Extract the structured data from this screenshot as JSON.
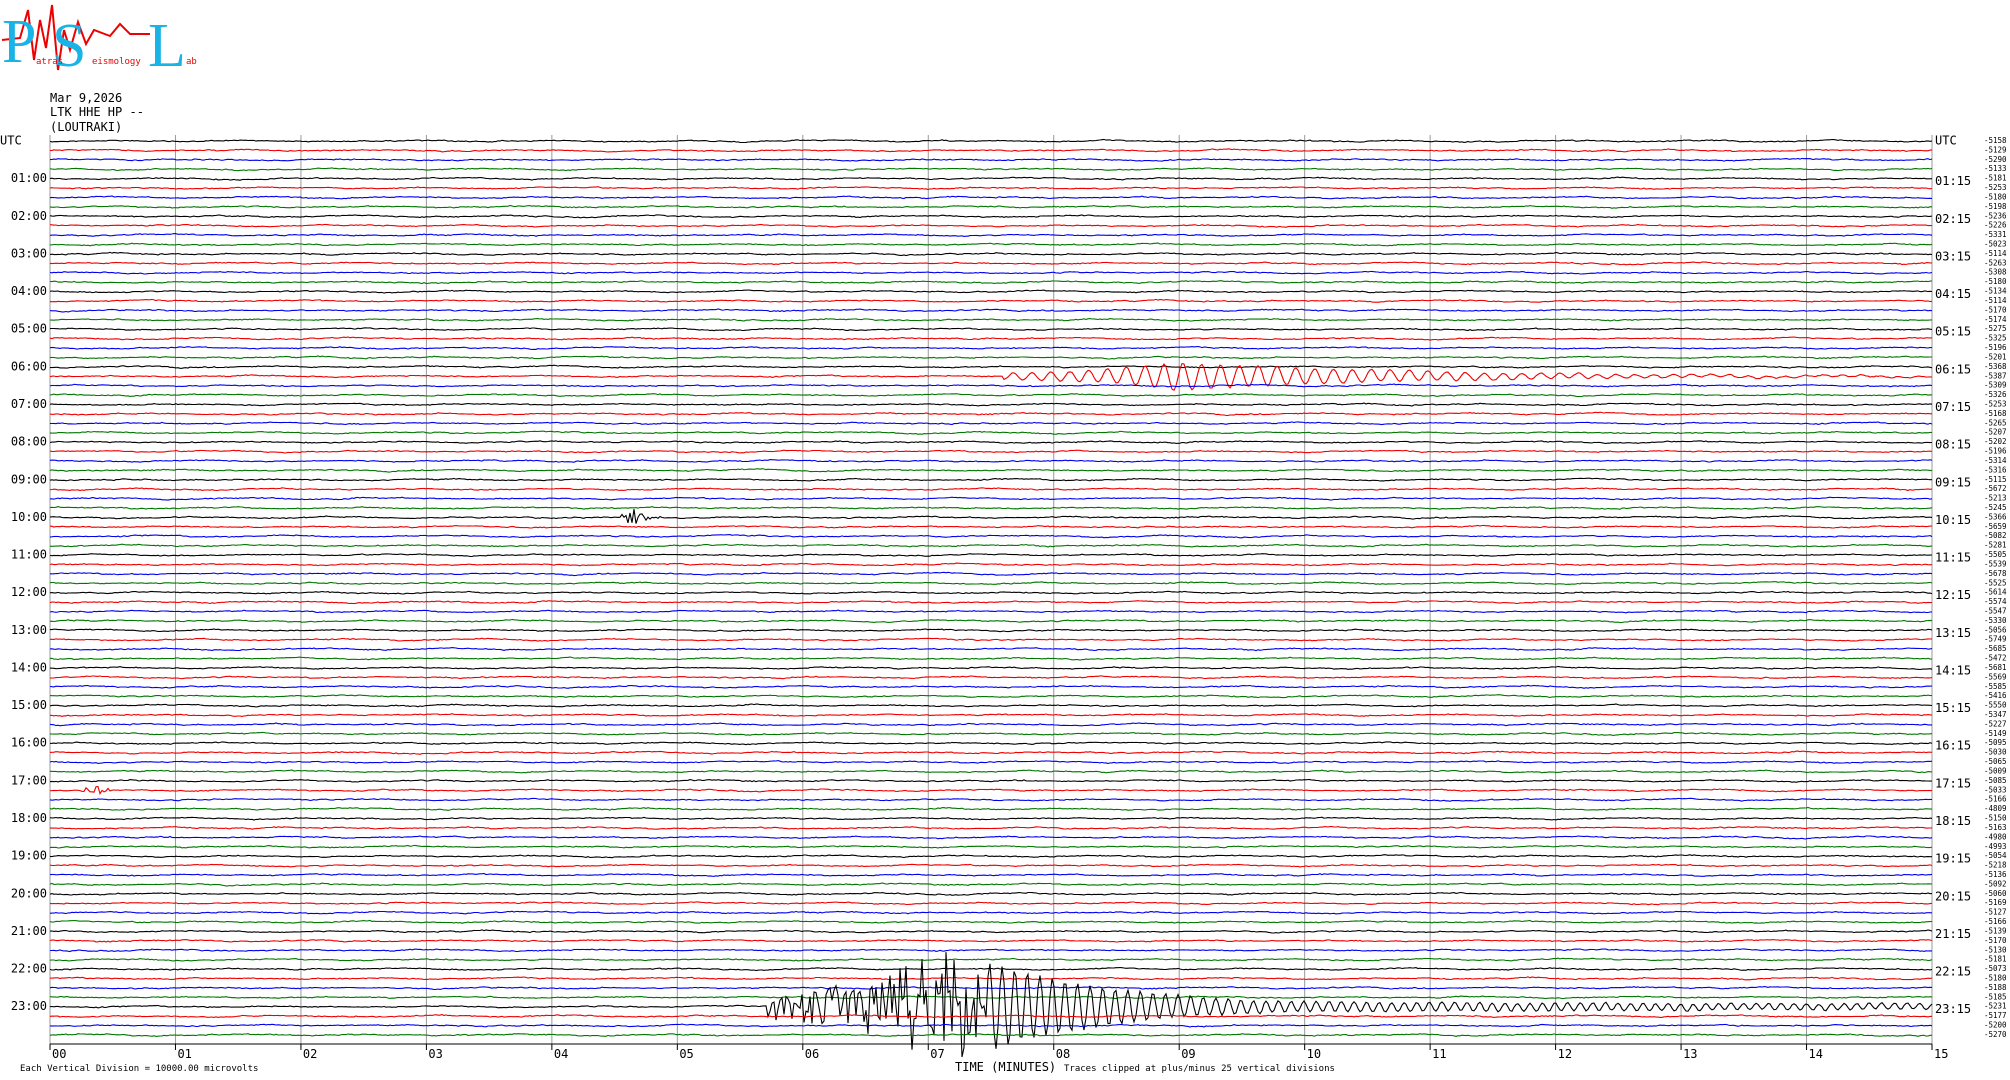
{
  "logo": {
    "p": "P",
    "s": "S",
    "l": "L",
    "words": [
      "atras",
      "eismology",
      "ab"
    ]
  },
  "header": {
    "date": "Mar 9,2026",
    "station": "LTK HHE HP --",
    "place": "(LOUTRAKI)"
  },
  "left_labels": [
    "UTC",
    "01:00",
    "02:00",
    "03:00",
    "04:00",
    "05:00",
    "06:00",
    "07:00",
    "08:00",
    "09:00",
    "10:00",
    "11:00",
    "12:00",
    "13:00",
    "14:00",
    "15:00",
    "16:00",
    "17:00",
    "18:00",
    "19:00",
    "20:00",
    "21:00",
    "22:00",
    "23:00"
  ],
  "right_labels": [
    "UTC",
    "01:15",
    "02:15",
    "03:15",
    "04:15",
    "05:15",
    "06:15",
    "07:15",
    "08:15",
    "09:15",
    "10:15",
    "11:15",
    "12:15",
    "13:15",
    "14:15",
    "15:15",
    "16:15",
    "17:15",
    "18:15",
    "19:15",
    "20:15",
    "21:15",
    "22:15",
    "23:15"
  ],
  "trace_offsets": [
    "-5158",
    "-5129",
    "-5290",
    "-5133",
    "-5181",
    "-5253",
    "-5180",
    "-5198",
    "-5236",
    "-5226",
    "-5331",
    "-5023",
    "-5114",
    "-5263",
    "-5308",
    "-5180",
    "-5134",
    "-5114",
    "-5170",
    "-5174",
    "-5275",
    "-5325",
    "-5196",
    "-5201",
    "-5368",
    "-5387",
    "-5309",
    "-5326",
    "-5253",
    "-5168",
    "-5265",
    "-5207",
    "-5202",
    "-5196",
    "-5314",
    "-5316",
    "-5115",
    "-5672",
    "-5213",
    "-5245",
    "-5366",
    "-5659",
    "-5082",
    "-5281",
    "-5505",
    "-5539",
    "-5678",
    "-5525",
    "-5614",
    "-5574",
    "-5547",
    "-5330",
    "-5056",
    "-5749",
    "-5685",
    "-5472",
    "-5681",
    "-5569",
    "-5585",
    "-5416",
    "-5550",
    "-5347",
    "-5227",
    "-5149",
    "-5095",
    "-5030",
    "-5065",
    "-5009",
    "-5085",
    "-5033",
    "-5166",
    "-4809",
    "-5150",
    "-5163",
    "-4980",
    "-4993",
    "-5054",
    "-5218",
    "-5136",
    "-5092",
    "-5060",
    "-5169",
    "-5127",
    "-5166",
    "-5139",
    "-5170",
    "-5130",
    "-5181",
    "-5073",
    "-5180",
    "-5188",
    "-5185",
    "-5231",
    "-5177",
    "-5200",
    "-5270"
  ],
  "x_axis": {
    "labels": [
      "00",
      "01",
      "02",
      "03",
      "04",
      "05",
      "06",
      "07",
      "08",
      "09",
      "10",
      "11",
      "12",
      "13",
      "14",
      "15"
    ],
    "title": "TIME (MINUTES)"
  },
  "footer": {
    "scale": "Each Vertical Division = 10000.00 microvolts",
    "clip": "Traces clipped at plus/minus 25 vertical divisions"
  }
}
